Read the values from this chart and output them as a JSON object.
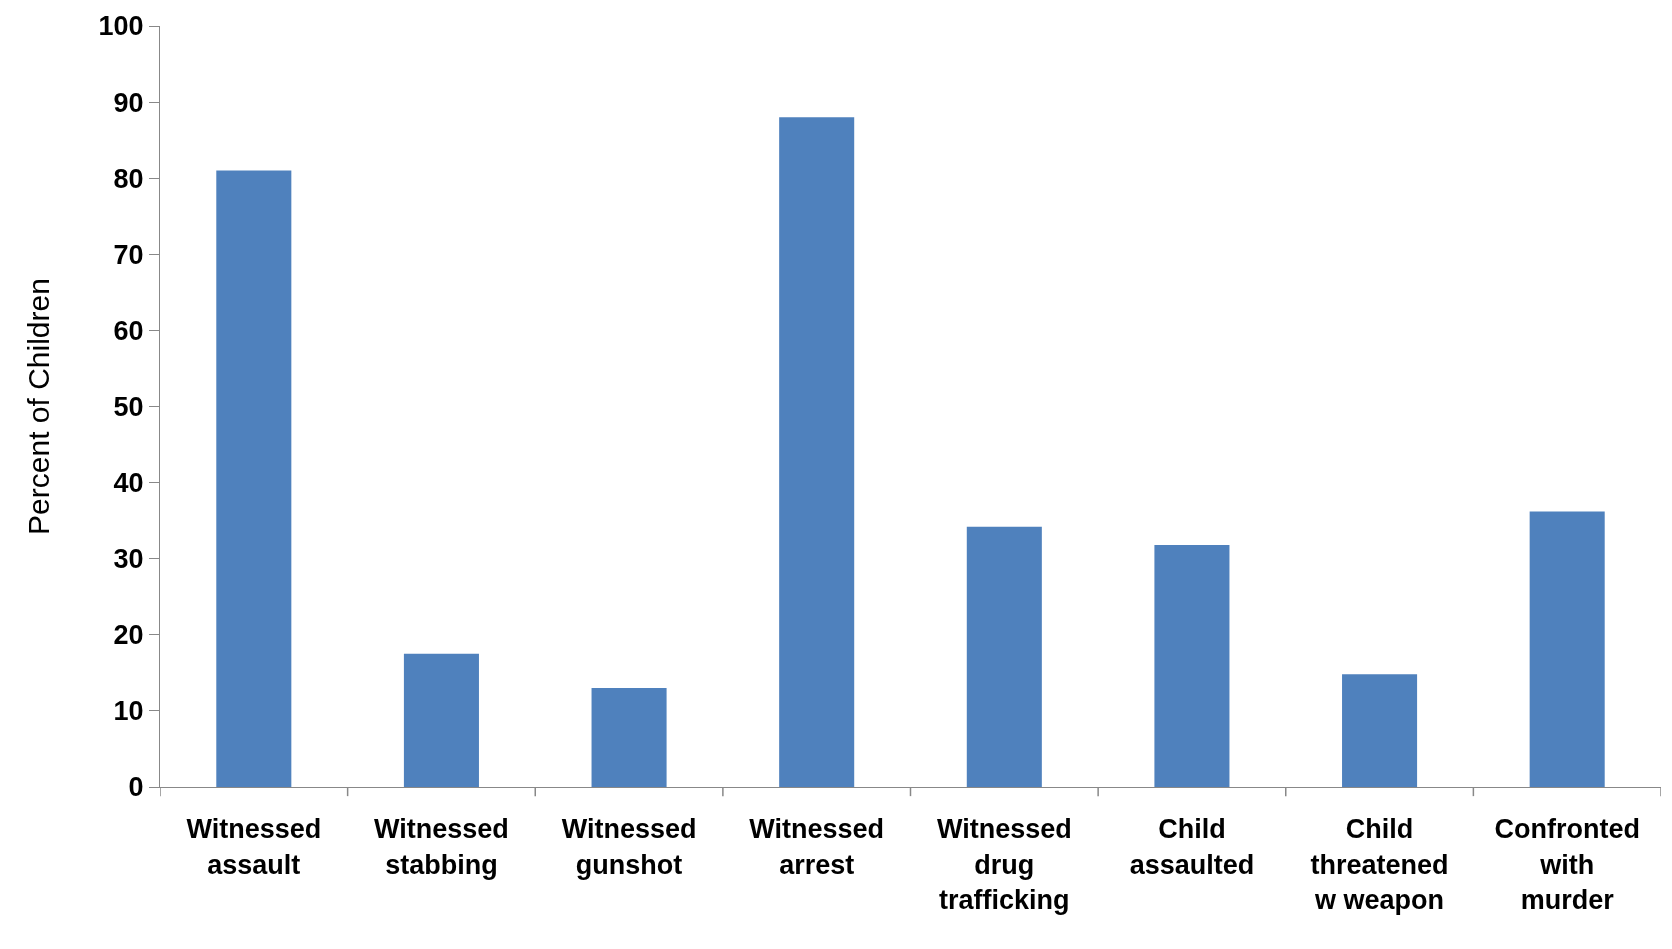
{
  "chart_data": {
    "type": "bar",
    "ylabel": "Percent of Children",
    "categories": [
      "Witnessed\nassault",
      "Witnessed\nstabbing",
      "Witnessed\ngunshot",
      "Witnessed\narrest",
      "Witnessed\ndrug\ntrafficking",
      "Child\nassaulted",
      "Child\nthreatened\nw weapon",
      "Confronted\nwith\nmurder"
    ],
    "values": [
      81,
      17.5,
      13,
      88,
      34.2,
      31.8,
      14.8,
      36.2
    ],
    "color": "#4f81bd",
    "ylim": [
      0,
      100
    ],
    "yticks": [
      0,
      10,
      20,
      30,
      40,
      50,
      60,
      70,
      80,
      90,
      100
    ]
  }
}
